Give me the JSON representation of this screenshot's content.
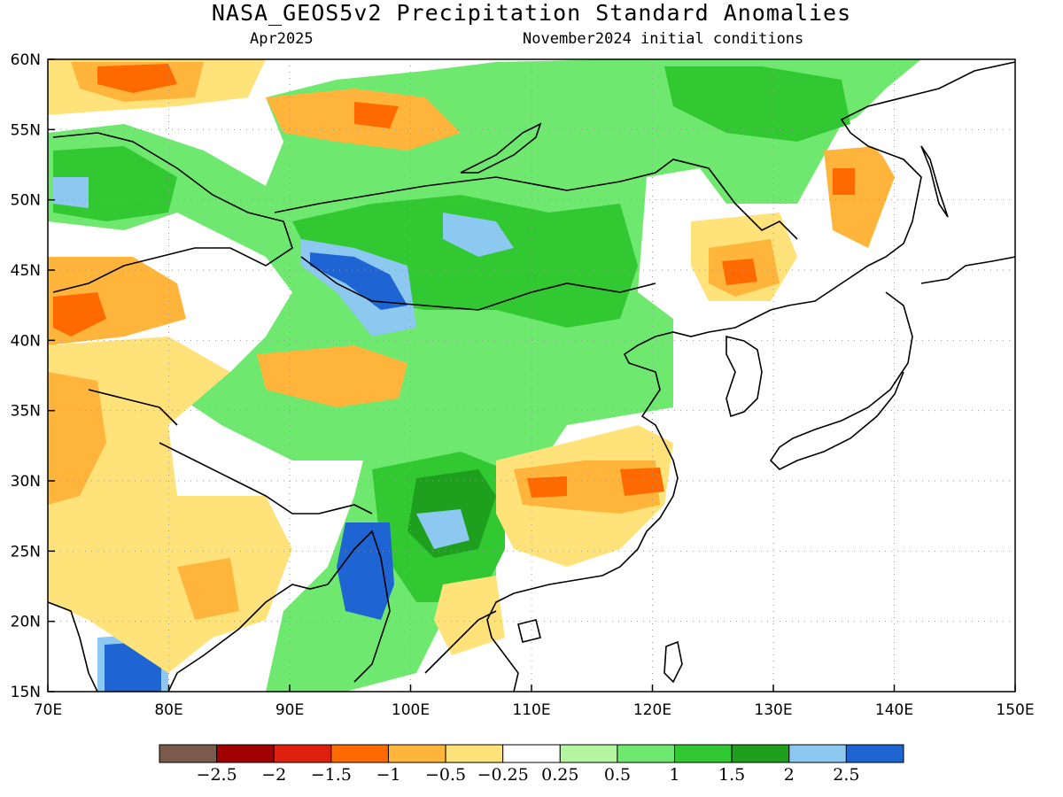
{
  "title": "NASA_GEOS5v2 Precipitation Standard Anomalies",
  "subtitle_left": "Apr2025",
  "subtitle_right": "November2024 initial conditions",
  "lat_labels": [
    "60N",
    "55N",
    "50N",
    "45N",
    "40N",
    "35N",
    "30N",
    "25N",
    "20N",
    "15N"
  ],
  "lon_labels": [
    "70E",
    "80E",
    "90E",
    "100E",
    "110E",
    "120E",
    "130E",
    "140E",
    "150E"
  ],
  "colorbar": {
    "colors": [
      "#7a5a4a",
      "#a00000",
      "#e0200e",
      "#ff6a00",
      "#ffb43c",
      "#ffe27a",
      "#ffffff",
      "#b4f5a0",
      "#6ee86e",
      "#32c832",
      "#1ea01e",
      "#8cc8f0",
      "#1e64d2"
    ],
    "labels": [
      "−2.5",
      "−2",
      "−1.5",
      "−1",
      "−0.5",
      "−0.25",
      "0.25",
      "0.5",
      "1",
      "1.5",
      "2",
      "2.5"
    ]
  }
}
